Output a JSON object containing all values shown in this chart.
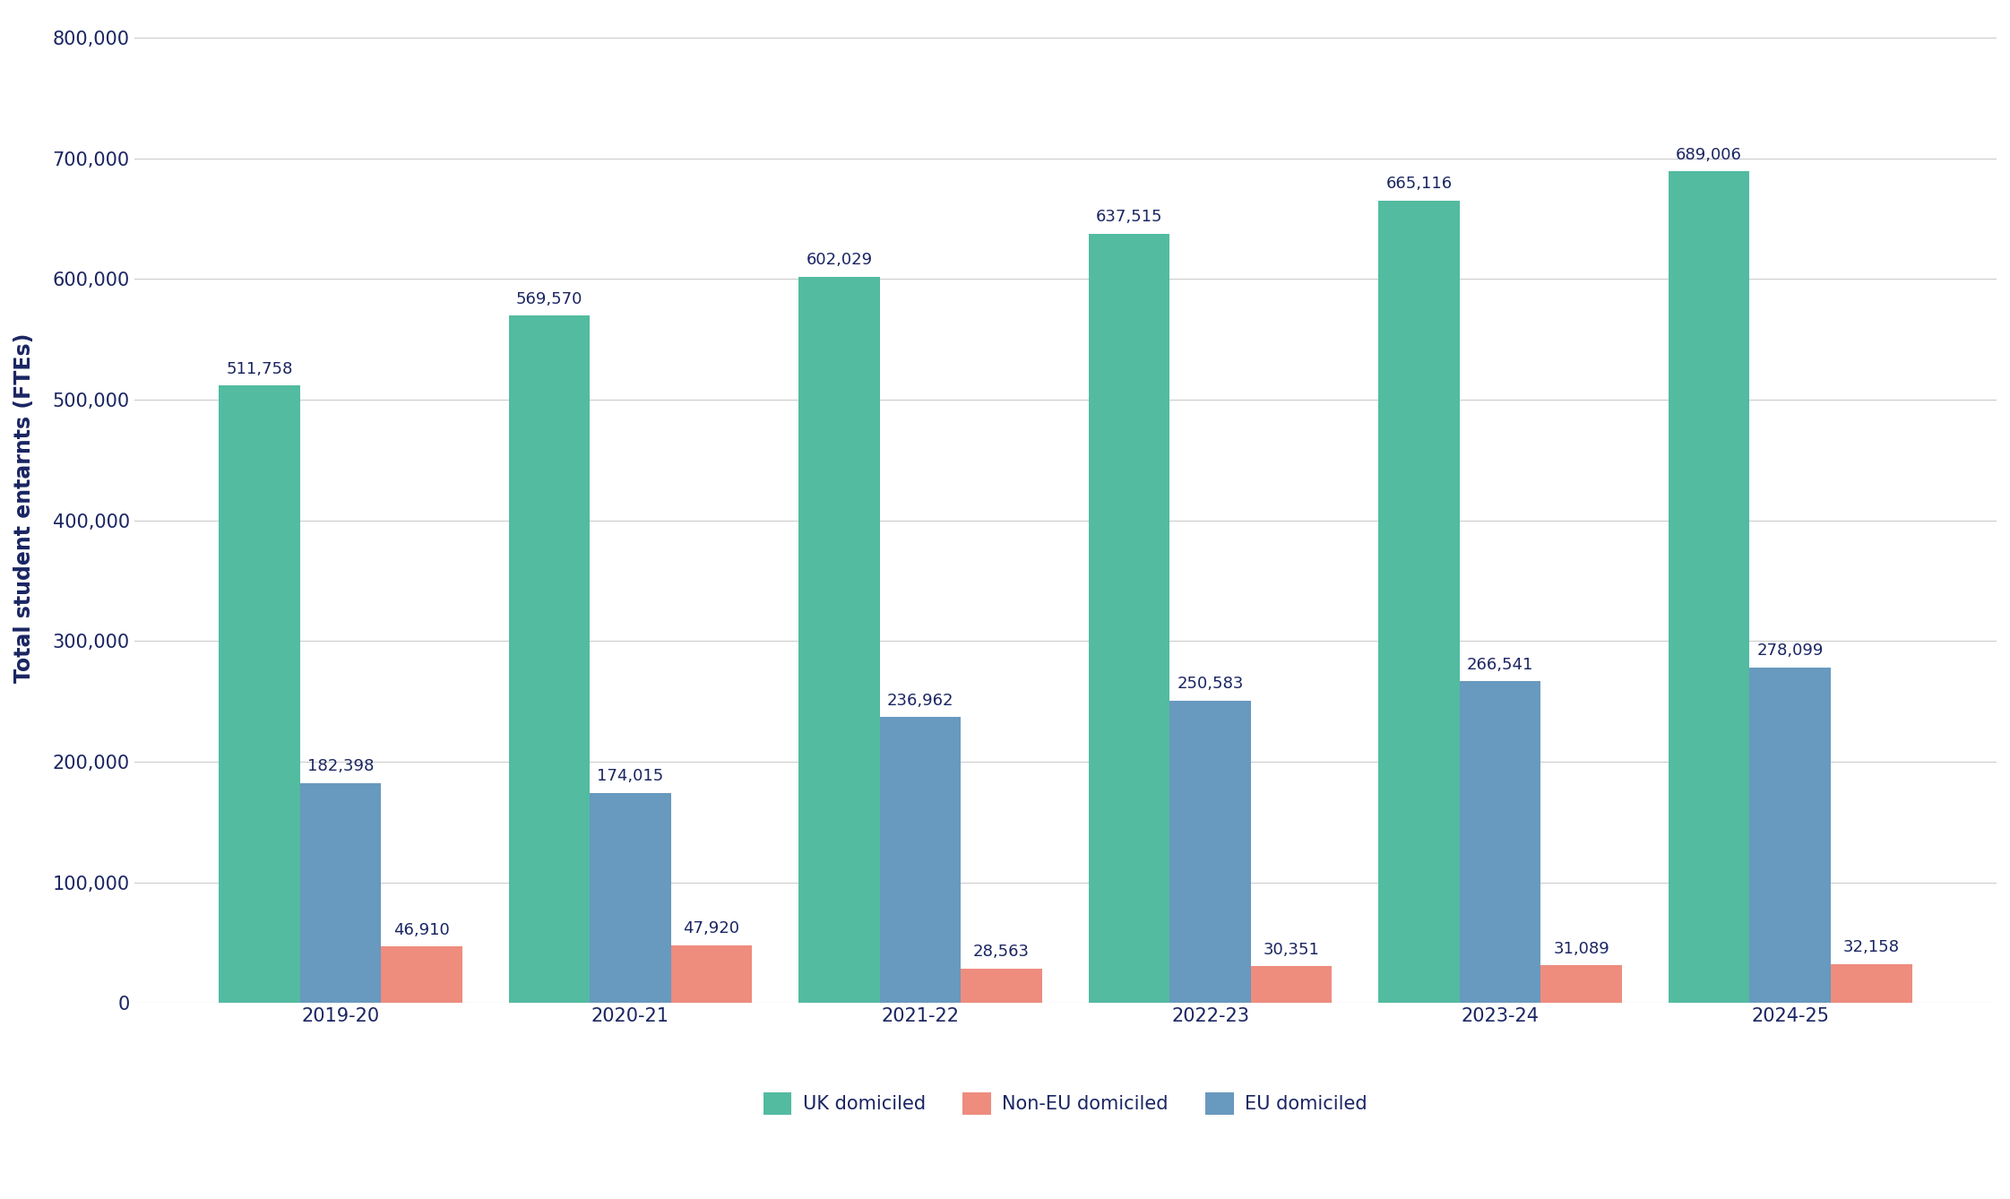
{
  "years": [
    "2019-20",
    "2020-21",
    "2021-22",
    "2022-23",
    "2023-24",
    "2024-25"
  ],
  "uk_domiciled": [
    511758,
    569570,
    602029,
    637515,
    665116,
    689006
  ],
  "non_eu_domiciled": [
    46910,
    47920,
    28563,
    30351,
    31089,
    32158
  ],
  "eu_domiciled": [
    182398,
    174015,
    236962,
    250583,
    266541,
    278099
  ],
  "uk_color": "#52BBA0",
  "non_eu_color": "#EE8C7E",
  "eu_color": "#6899BE",
  "ylabel": "Total student entarnts (FTEs)",
  "background_color": "#FFFFFF",
  "legend_labels": [
    "UK domiciled",
    "Non-EU domiciled",
    "EU domiciled"
  ],
  "ylim": [
    0,
    820000
  ],
  "yticks": [
    0,
    100000,
    200000,
    300000,
    400000,
    500000,
    600000,
    700000,
    800000
  ],
  "bar_width": 0.28,
  "label_color": "#1A2562",
  "axis_label_color": "#1A2562",
  "tick_color": "#1A2562",
  "grid_color": "#CCCCCC",
  "label_fontsize": 13,
  "tick_fontsize": 15,
  "ylabel_fontsize": 17
}
